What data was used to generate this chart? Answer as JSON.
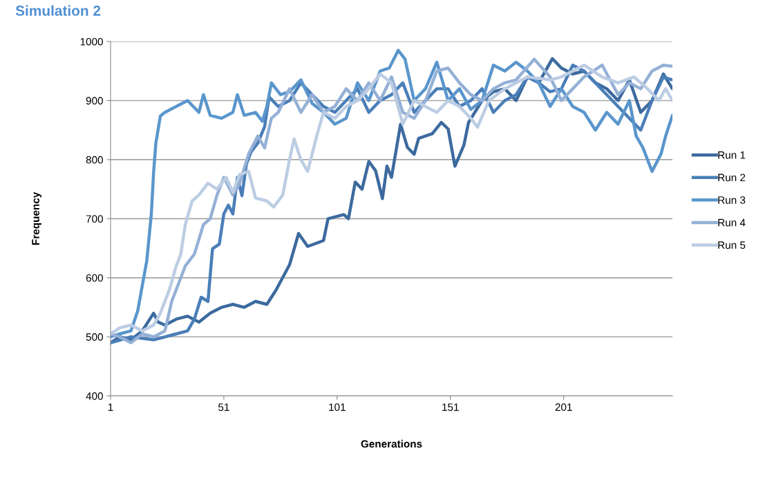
{
  "chart_data": {
    "type": "line",
    "title": "Simulation 2",
    "xlabel": "Generations",
    "ylabel": "Frequency",
    "xlim": [
      1,
      249
    ],
    "xticks": [
      1,
      51,
      101,
      151,
      201
    ],
    "ylim": [
      400,
      1000
    ],
    "yticks": [
      400,
      500,
      600,
      700,
      800,
      900,
      1000
    ],
    "grid": "y",
    "legend": "right",
    "marker": "none",
    "line_style": "solid",
    "series": [
      {
        "name": "Run 1",
        "color": "#3c6a9e",
        "x": [
          1,
          5,
          10,
          15,
          20,
          22,
          25,
          30,
          35,
          40,
          45,
          50,
          55,
          60,
          65,
          70,
          74,
          80,
          84,
          88,
          95,
          97,
          104,
          106,
          109,
          112,
          115,
          118,
          121,
          123,
          125,
          129,
          132,
          135,
          137,
          143,
          147,
          150,
          153,
          157,
          159,
          165,
          170,
          175,
          180,
          185,
          190,
          196,
          200,
          205,
          210,
          215,
          220,
          225,
          230,
          235,
          240,
          245,
          249
        ],
        "values": [
          490,
          500,
          495,
          510,
          540,
          525,
          520,
          530,
          535,
          525,
          540,
          550,
          555,
          550,
          560,
          555,
          579,
          622,
          675,
          653,
          663,
          700,
          707,
          700,
          762,
          750,
          797,
          781,
          734,
          789,
          770,
          860,
          821,
          809,
          836,
          844,
          863,
          852,
          789,
          825,
          863,
          900,
          915,
          920,
          900,
          940,
          930,
          971,
          955,
          945,
          950,
          930,
          920,
          900,
          935,
          880,
          900,
          945,
          920
        ]
      },
      {
        "name": "Run 2",
        "color": "#4a7eb8",
        "x": [
          1,
          10,
          20,
          30,
          35,
          38,
          41,
          44,
          46,
          49,
          51,
          53,
          55,
          57,
          59,
          61,
          63,
          66,
          69,
          71,
          75,
          80,
          85,
          90,
          95,
          100,
          105,
          110,
          115,
          120,
          125,
          130,
          135,
          140,
          145,
          150,
          155,
          160,
          165,
          170,
          175,
          180,
          185,
          190,
          195,
          200,
          205,
          210,
          215,
          220,
          225,
          230,
          235,
          240,
          245,
          249
        ],
        "values": [
          490,
          500,
          495,
          505,
          510,
          530,
          567,
          560,
          649,
          657,
          708,
          723,
          708,
          770,
          739,
          793,
          813,
          828,
          856,
          906,
          890,
          900,
          930,
          910,
          890,
          880,
          900,
          920,
          880,
          900,
          910,
          930,
          880,
          900,
          920,
          920,
          890,
          900,
          920,
          880,
          900,
          910,
          940,
          930,
          915,
          920,
          960,
          950,
          930,
          910,
          890,
          870,
          850,
          900,
          940,
          935
        ]
      },
      {
        "name": "Run 3",
        "color": "#5a96cc",
        "x": [
          1,
          5,
          10,
          13,
          17,
          19,
          20,
          21,
          23,
          25,
          30,
          35,
          40,
          42,
          45,
          50,
          55,
          57,
          60,
          65,
          68,
          70,
          72,
          76,
          80,
          85,
          90,
          95,
          100,
          105,
          110,
          115,
          120,
          124,
          128,
          131,
          135,
          140,
          145,
          150,
          155,
          160,
          165,
          170,
          175,
          180,
          185,
          190,
          195,
          200,
          205,
          210,
          215,
          220,
          225,
          230,
          233,
          236,
          240,
          244,
          246,
          249
        ],
        "values": [
          500,
          505,
          510,
          544,
          629,
          708,
          778,
          828,
          874,
          880,
          890,
          900,
          880,
          910,
          875,
          870,
          880,
          910,
          875,
          880,
          865,
          890,
          930,
          910,
          915,
          935,
          895,
          880,
          860,
          870,
          930,
          900,
          950,
          955,
          985,
          970,
          900,
          920,
          965,
          900,
          920,
          885,
          900,
          960,
          950,
          965,
          950,
          930,
          890,
          920,
          890,
          880,
          850,
          880,
          860,
          900,
          840,
          820,
          780,
          810,
          840,
          875
        ]
      },
      {
        "name": "Run 4",
        "color": "#94b0d6",
        "x": [
          1,
          5,
          10,
          15,
          20,
          25,
          28,
          30,
          34,
          38,
          42,
          45,
          48,
          51,
          55,
          58,
          62,
          66,
          69,
          72,
          75,
          80,
          85,
          90,
          95,
          100,
          105,
          110,
          115,
          120,
          125,
          130,
          135,
          140,
          145,
          150,
          155,
          160,
          165,
          170,
          175,
          180,
          188,
          195,
          200,
          205,
          210,
          218,
          225,
          230,
          235,
          240,
          245,
          249
        ],
        "values": [
          505,
          500,
          490,
          505,
          500,
          510,
          560,
          580,
          620,
          640,
          690,
          700,
          740,
          770,
          740,
          760,
          810,
          840,
          820,
          870,
          880,
          920,
          880,
          910,
          880,
          890,
          920,
          900,
          930,
          900,
          940,
          880,
          870,
          900,
          950,
          955,
          930,
          910,
          900,
          920,
          930,
          935,
          970,
          940,
          900,
          920,
          940,
          960,
          910,
          930,
          920,
          950,
          960,
          958
        ]
      },
      {
        "name": "Run 5",
        "color": "#bccde3",
        "x": [
          1,
          5,
          10,
          15,
          20,
          23,
          27,
          30,
          32,
          34,
          37,
          40,
          44,
          48,
          52,
          55,
          58,
          62,
          65,
          70,
          73,
          77,
          80,
          82,
          85,
          88,
          92,
          95,
          100,
          105,
          110,
          115,
          120,
          125,
          130,
          135,
          140,
          145,
          150,
          155,
          160,
          163,
          168,
          175,
          185,
          195,
          200,
          210,
          218,
          225,
          232,
          238,
          243,
          246,
          249
        ],
        "values": [
          505,
          515,
          520,
          510,
          520,
          540,
          580,
          620,
          640,
          690,
          730,
          740,
          760,
          750,
          770,
          745,
          775,
          780,
          735,
          730,
          720,
          740,
          800,
          835,
          800,
          780,
          840,
          880,
          870,
          890,
          900,
          920,
          945,
          930,
          860,
          900,
          890,
          880,
          900,
          890,
          870,
          855,
          900,
          920,
          940,
          935,
          940,
          960,
          940,
          930,
          940,
          920,
          900,
          920,
          900
        ]
      }
    ]
  }
}
